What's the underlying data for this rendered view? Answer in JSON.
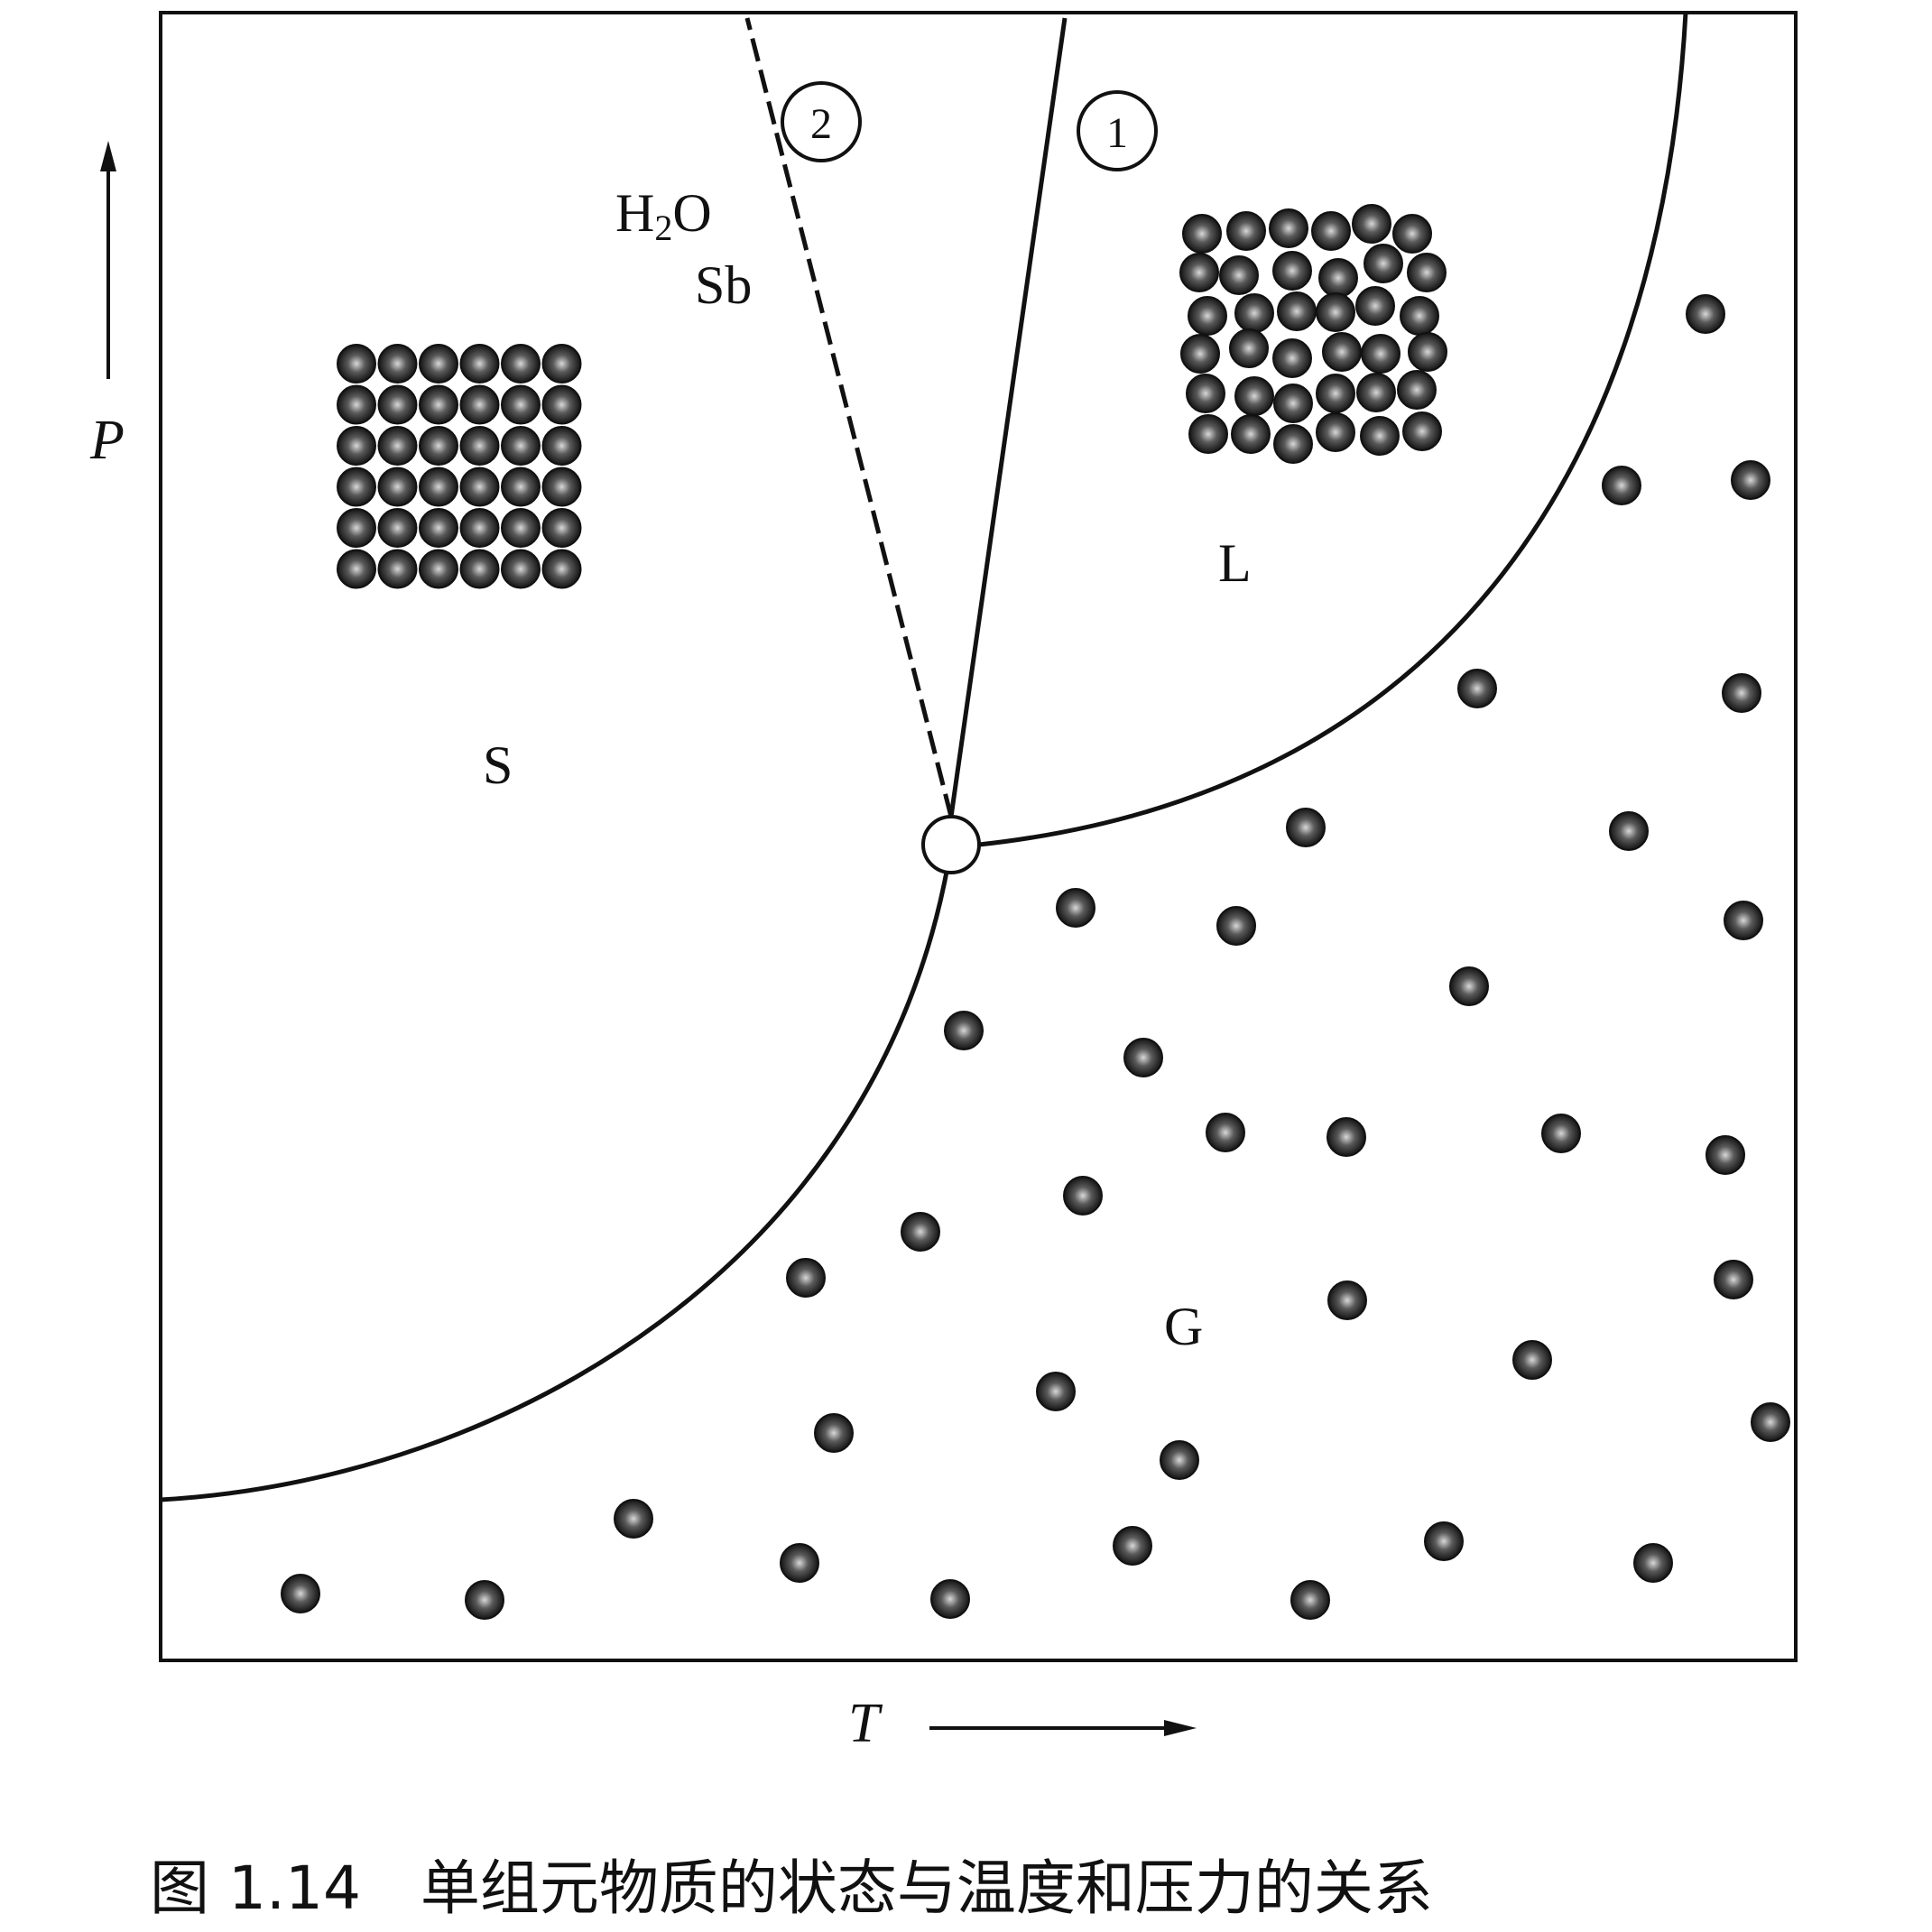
{
  "figure": {
    "caption": "图 1.14　单组元物质的状态与温度和压力的关系",
    "axes": {
      "x_label": "T",
      "y_label": "P"
    },
    "regions": {
      "solid": "S",
      "liquid": "L",
      "gas": "G"
    },
    "curve_markers": {
      "normal_melting": "1",
      "anomalous_melting": "2"
    },
    "anomalous_examples": {
      "line1_main": "H",
      "line1_sub": "2",
      "line1_tail": "O",
      "line2": "Sb"
    },
    "colors": {
      "ink": "#111111",
      "background": "#ffffff",
      "atom_fill": "#1a1a1a",
      "atom_highlight": "#bdbdbd"
    }
  }
}
